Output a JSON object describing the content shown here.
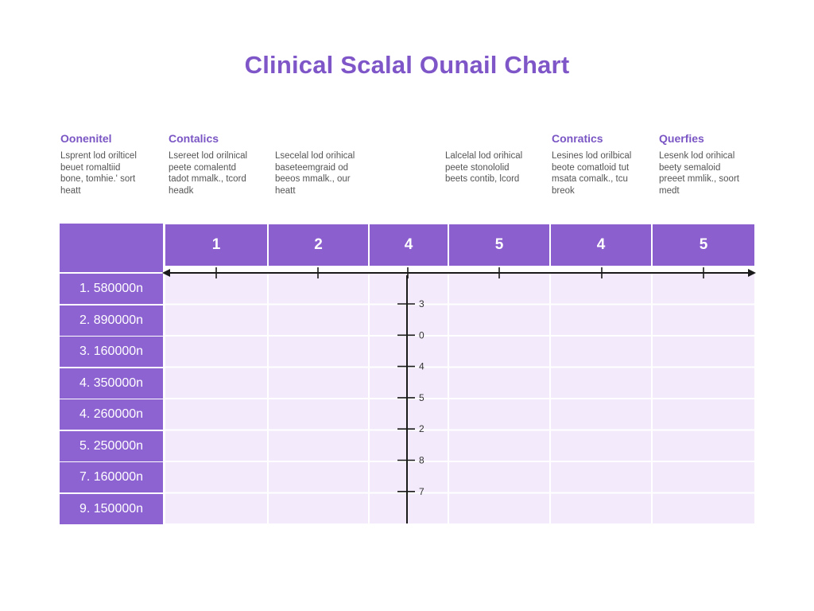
{
  "title": "Clinical Scalal Ounail Chart",
  "descriptions": [
    {
      "heading": "Oonenitel",
      "body": "Lsprent lod orilticel\nbeuet romaltiid\nbone, tomhie.' sort\nheatt"
    },
    {
      "heading": "Contalics",
      "body": "Lsereet lod orilnical\npeete comalentd\ntadot mmalk., tcord\nheadk"
    },
    {
      "heading": "",
      "body": "Lsecelal lod orihical\nbaseteemgraid od\nbeeos mmalk., our\nheatt"
    },
    {
      "heading": "",
      "body": "Lalcelal lod orihical\npeete stonololid\nbeets contib, lcord"
    },
    {
      "heading": "Conratics",
      "body": "Lesines lod orilbical\nbeote comatloid tut\nmsata comalk., tcu\nbreok"
    },
    {
      "heading": "Querfies",
      "body": "Lesenk lod orihical\nbeety semaloid\npreeet mmlik., soort\nmedt"
    }
  ],
  "chart_data": {
    "type": "table",
    "title": "Clinical Scalal Ounail Chart",
    "columns": [
      "1",
      "2",
      "4",
      "5",
      "4",
      "5"
    ],
    "rows": [
      "1. 580000n",
      "2. 890000n",
      "3. 160000n",
      "4. 350000n",
      "4. 260000n",
      "5. 250000n",
      "7. 160000n",
      "9. 150000n"
    ],
    "vertical_axis_ticks": [
      "3",
      "0",
      "4",
      "5",
      "2",
      "8",
      "7"
    ],
    "grid": true
  },
  "colors": {
    "accent": "#8b5fcd",
    "header_purple": "#8b62cf",
    "cell_fill": "#f3ebfb",
    "title": "#7f56c8",
    "axis": "#1a1a1a"
  }
}
